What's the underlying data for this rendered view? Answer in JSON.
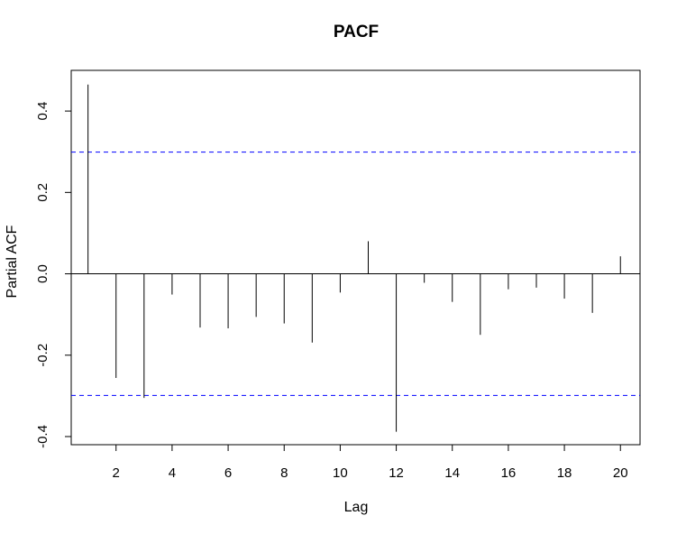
{
  "chart_data": {
    "type": "bar",
    "title": "PACF",
    "xlabel": "Lag",
    "ylabel": "Partial ACF",
    "x": [
      1,
      2,
      3,
      4,
      5,
      6,
      7,
      8,
      9,
      10,
      11,
      12,
      13,
      14,
      15,
      16,
      17,
      18,
      19,
      20
    ],
    "values": [
      0.465,
      -0.256,
      -0.305,
      -0.051,
      -0.132,
      -0.134,
      -0.106,
      -0.122,
      -0.169,
      -0.046,
      0.08,
      -0.388,
      -0.022,
      -0.069,
      -0.15,
      -0.038,
      -0.034,
      -0.061,
      -0.096,
      0.043
    ],
    "xlim": [
      0.4,
      20.7
    ],
    "ylim": [
      -0.42,
      0.5
    ],
    "x_ticks": [
      2,
      4,
      6,
      8,
      10,
      12,
      14,
      16,
      18,
      20
    ],
    "x_tick_labels": [
      "2",
      "4",
      "6",
      "8",
      "10",
      "12",
      "14",
      "16",
      "18",
      "20"
    ],
    "y_ticks": [
      -0.4,
      -0.2,
      0.0,
      0.2,
      0.4
    ],
    "y_tick_labels": [
      "-0.4",
      "-0.2",
      "0.0",
      "0.2",
      "0.4"
    ],
    "confidence_band": [
      0.299,
      -0.299
    ],
    "colors": {
      "bars": "#000000",
      "confidence_band": "#0000FF",
      "zero_line": "#000000",
      "frame": "#000000"
    },
    "grid": false,
    "legend": "none"
  }
}
